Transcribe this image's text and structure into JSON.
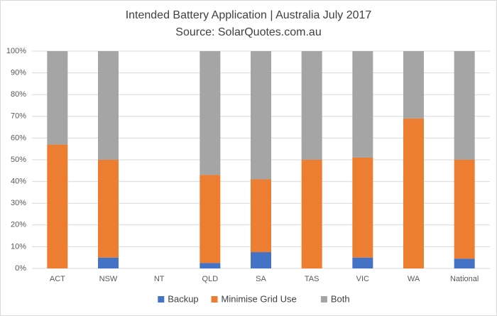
{
  "chart_data": {
    "type": "stacked-bar",
    "title": "Intended Battery Application | Australia July 2017",
    "subtitle": "Source: SolarQuotes.com.au",
    "categories": [
      "ACT",
      "NSW",
      "NT",
      "QLD",
      "SA",
      "TAS",
      "VIC",
      "WA",
      "National"
    ],
    "series": [
      {
        "name": "Backup",
        "color": "#4472c4",
        "values": [
          0,
          5,
          0,
          2.5,
          7.5,
          0,
          5,
          0,
          4.5
        ]
      },
      {
        "name": "Minimise Grid Use",
        "color": "#ed7d31",
        "values": [
          57,
          45,
          0,
          40.5,
          33.5,
          50,
          46,
          69,
          45.5
        ]
      },
      {
        "name": "Both",
        "color": "#a5a5a5",
        "values": [
          43,
          50,
          0,
          57,
          59,
          50,
          49,
          31,
          50
        ]
      }
    ],
    "ylim": [
      0,
      100
    ],
    "yticks": [
      {
        "value": 0,
        "label": "0%"
      },
      {
        "value": 10,
        "label": "10%"
      },
      {
        "value": 20,
        "label": "20%"
      },
      {
        "value": 30,
        "label": "30%"
      },
      {
        "value": 40,
        "label": "40%"
      },
      {
        "value": 50,
        "label": "50%"
      },
      {
        "value": 60,
        "label": "60%"
      },
      {
        "value": 70,
        "label": "70%"
      },
      {
        "value": 80,
        "label": "80%"
      },
      {
        "value": 90,
        "label": "90%"
      },
      {
        "value": 100,
        "label": "100%"
      }
    ],
    "grid": true,
    "legend": "bottom"
  }
}
